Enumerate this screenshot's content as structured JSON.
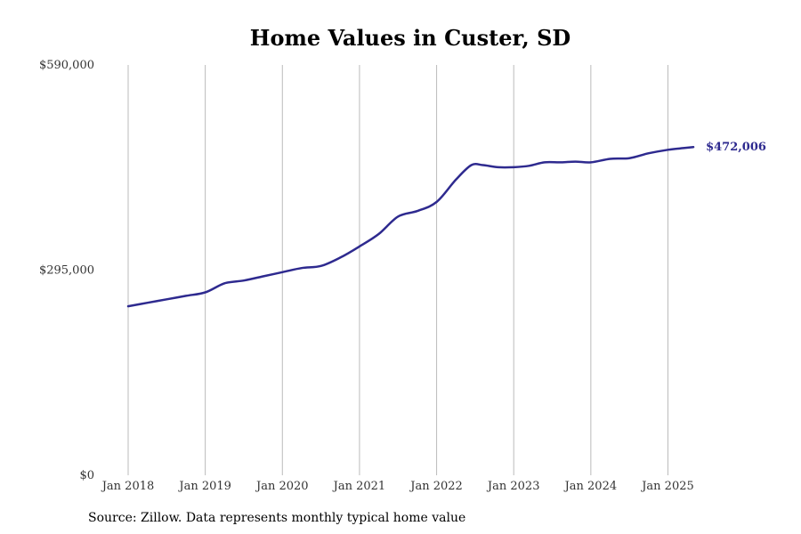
{
  "chart_data": {
    "type": "line",
    "title": "Home Values in Custer, SD",
    "xlabel": "",
    "ylabel": "",
    "ylim": [
      0,
      590000
    ],
    "y_ticks": [
      {
        "value": 0,
        "label": "$0"
      },
      {
        "value": 295000,
        "label": "$295,000"
      },
      {
        "value": 590000,
        "label": "$590,000"
      }
    ],
    "x_ticks": [
      {
        "value": 2018.0,
        "label": "Jan 2018"
      },
      {
        "value": 2019.0,
        "label": "Jan 2019"
      },
      {
        "value": 2020.0,
        "label": "Jan 2020"
      },
      {
        "value": 2021.0,
        "label": "Jan 2021"
      },
      {
        "value": 2022.0,
        "label": "Jan 2022"
      },
      {
        "value": 2023.0,
        "label": "Jan 2023"
      },
      {
        "value": 2024.0,
        "label": "Jan 2024"
      },
      {
        "value": 2025.0,
        "label": "Jan 2025"
      }
    ],
    "grid": "vertical",
    "series": [
      {
        "color": "#2e2a8f",
        "end_label": "$472,006",
        "points": [
          [
            2018.0,
            243000
          ],
          [
            2018.25,
            248000
          ],
          [
            2018.5,
            253000
          ],
          [
            2018.75,
            258000
          ],
          [
            2019.0,
            263000
          ],
          [
            2019.25,
            276000
          ],
          [
            2019.5,
            280000
          ],
          [
            2019.75,
            286000
          ],
          [
            2020.0,
            292000
          ],
          [
            2020.25,
            298000
          ],
          [
            2020.5,
            301000
          ],
          [
            2020.75,
            313000
          ],
          [
            2021.0,
            329000
          ],
          [
            2021.25,
            347000
          ],
          [
            2021.5,
            372000
          ],
          [
            2021.75,
            380000
          ],
          [
            2022.0,
            393000
          ],
          [
            2022.25,
            425000
          ],
          [
            2022.45,
            446000
          ],
          [
            2022.6,
            446000
          ],
          [
            2022.8,
            443000
          ],
          [
            2023.0,
            443000
          ],
          [
            2023.2,
            445000
          ],
          [
            2023.4,
            450000
          ],
          [
            2023.6,
            450000
          ],
          [
            2023.8,
            451000
          ],
          [
            2024.0,
            450000
          ],
          [
            2024.25,
            455000
          ],
          [
            2024.5,
            456000
          ],
          [
            2024.75,
            463000
          ],
          [
            2025.0,
            468000
          ],
          [
            2025.2,
            470500
          ],
          [
            2025.33,
            472006
          ]
        ]
      }
    ]
  },
  "source_text": "Source: Zillow. Data represents monthly typical home value"
}
